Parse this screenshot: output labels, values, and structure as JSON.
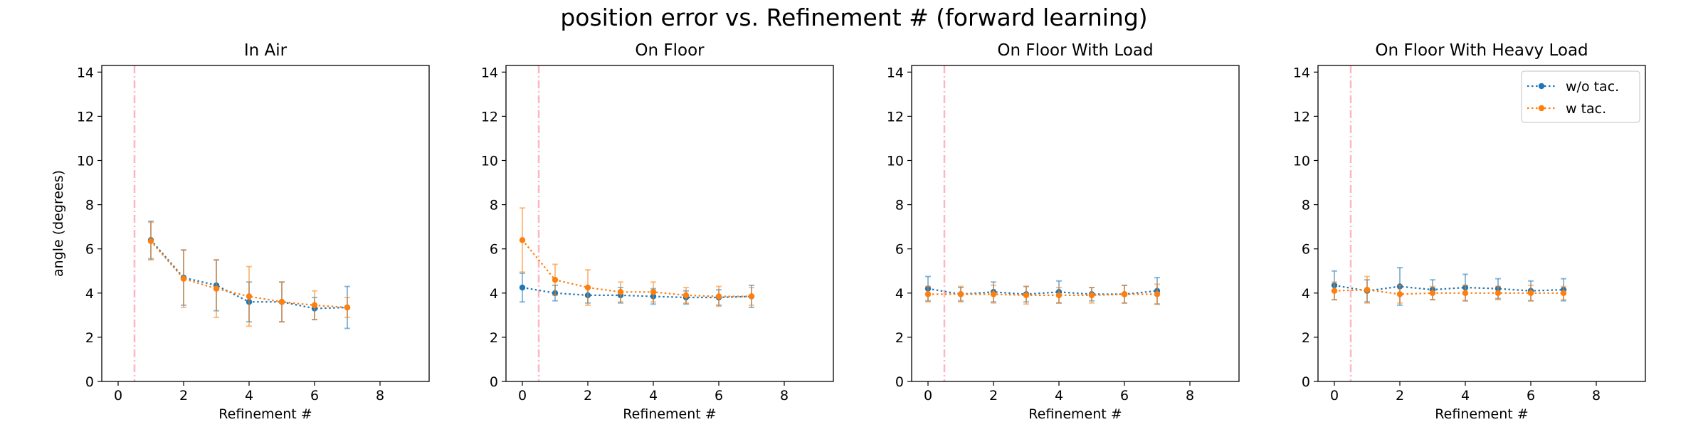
{
  "figure": {
    "suptitle": "position error vs. Refinement # (forward learning)",
    "colors": {
      "wo": "#1f77b4",
      "w": "#ff7f0e",
      "vline": "#ffb6c1"
    }
  },
  "chart_data": [
    {
      "type": "line",
      "title": "In Air",
      "xlabel": "Refinement #",
      "ylabel": "angle (degrees)",
      "xlim": [
        -0.5,
        9.5
      ],
      "ylim": [
        0,
        14.3
      ],
      "xticks": [
        0,
        2,
        4,
        6,
        8
      ],
      "yticks": [
        0,
        2,
        4,
        6,
        8,
        10,
        12,
        14
      ],
      "vline_x": 0.5,
      "legend": false,
      "series": [
        {
          "name": "w/o tac.",
          "x": [
            1,
            2,
            3,
            4,
            5,
            6,
            7
          ],
          "y": [
            6.4,
            4.7,
            4.35,
            3.6,
            3.6,
            3.3,
            3.35
          ],
          "err": [
            0.85,
            1.25,
            1.15,
            0.9,
            0.9,
            0.5,
            0.95
          ]
        },
        {
          "name": "w tac.",
          "x": [
            1,
            2,
            3,
            4,
            5,
            6,
            7
          ],
          "y": [
            6.35,
            4.65,
            4.2,
            3.85,
            3.6,
            3.45,
            3.35
          ],
          "err": [
            0.85,
            1.3,
            1.3,
            1.35,
            0.9,
            0.65,
            0.45
          ]
        }
      ]
    },
    {
      "type": "line",
      "title": "On Floor",
      "xlabel": "Refinement #",
      "ylabel": "",
      "xlim": [
        -0.5,
        9.5
      ],
      "ylim": [
        0,
        14.3
      ],
      "xticks": [
        0,
        2,
        4,
        6,
        8
      ],
      "yticks": [
        0,
        2,
        4,
        6,
        8,
        10,
        12,
        14
      ],
      "vline_x": 0.5,
      "legend": false,
      "series": [
        {
          "name": "w/o tac.",
          "x": [
            0,
            1,
            2,
            3,
            4,
            5,
            6,
            7
          ],
          "y": [
            4.25,
            4.0,
            3.9,
            3.9,
            3.85,
            3.8,
            3.8,
            3.85
          ],
          "err": [
            0.65,
            0.35,
            0.35,
            0.35,
            0.35,
            0.3,
            0.35,
            0.5
          ]
        },
        {
          "name": "w tac.",
          "x": [
            0,
            1,
            2,
            3,
            4,
            5,
            6,
            7
          ],
          "y": [
            6.4,
            4.6,
            4.25,
            4.05,
            4.05,
            3.9,
            3.85,
            3.85
          ],
          "err": [
            1.45,
            0.7,
            0.8,
            0.45,
            0.45,
            0.35,
            0.45,
            0.4
          ]
        }
      ]
    },
    {
      "type": "line",
      "title": "On Floor With Load",
      "xlabel": "Refinement #",
      "ylabel": "",
      "xlim": [
        -0.5,
        9.5
      ],
      "ylim": [
        0,
        14.3
      ],
      "xticks": [
        0,
        2,
        4,
        6,
        8
      ],
      "yticks": [
        0,
        2,
        4,
        6,
        8,
        10,
        12,
        14
      ],
      "vline_x": 0.5,
      "legend": false,
      "series": [
        {
          "name": "w/o tac.",
          "x": [
            0,
            1,
            2,
            3,
            4,
            5,
            6,
            7
          ],
          "y": [
            4.2,
            3.95,
            4.05,
            3.95,
            4.05,
            3.95,
            3.95,
            4.1
          ],
          "err": [
            0.55,
            0.3,
            0.45,
            0.35,
            0.5,
            0.3,
            0.4,
            0.6
          ]
        },
        {
          "name": "w tac.",
          "x": [
            0,
            1,
            2,
            3,
            4,
            5,
            6,
            7
          ],
          "y": [
            3.95,
            3.95,
            3.95,
            3.9,
            3.9,
            3.9,
            3.95,
            3.95
          ],
          "err": [
            0.35,
            0.35,
            0.4,
            0.4,
            0.35,
            0.35,
            0.4,
            0.45
          ]
        }
      ]
    },
    {
      "type": "line",
      "title": "On Floor With Heavy Load",
      "xlabel": "Refinement #",
      "ylabel": "",
      "xlim": [
        -0.5,
        9.5
      ],
      "ylim": [
        0,
        14.3
      ],
      "xticks": [
        0,
        2,
        4,
        6,
        8
      ],
      "yticks": [
        0,
        2,
        4,
        6,
        8,
        10,
        12,
        14
      ],
      "vline_x": 0.5,
      "legend": true,
      "legend_loc": "upper right",
      "series": [
        {
          "name": "w/o tac.",
          "x": [
            0,
            1,
            2,
            3,
            4,
            5,
            6,
            7
          ],
          "y": [
            4.35,
            4.1,
            4.3,
            4.15,
            4.25,
            4.2,
            4.1,
            4.15
          ],
          "err": [
            0.65,
            0.5,
            0.85,
            0.45,
            0.6,
            0.45,
            0.45,
            0.5
          ]
        },
        {
          "name": "w tac.",
          "x": [
            0,
            1,
            2,
            3,
            4,
            5,
            6,
            7
          ],
          "y": [
            4.1,
            4.15,
            3.95,
            4.0,
            4.0,
            4.0,
            4.0,
            4.0
          ],
          "err": [
            0.4,
            0.6,
            0.4,
            0.3,
            0.35,
            0.3,
            0.35,
            0.3
          ]
        }
      ]
    }
  ]
}
